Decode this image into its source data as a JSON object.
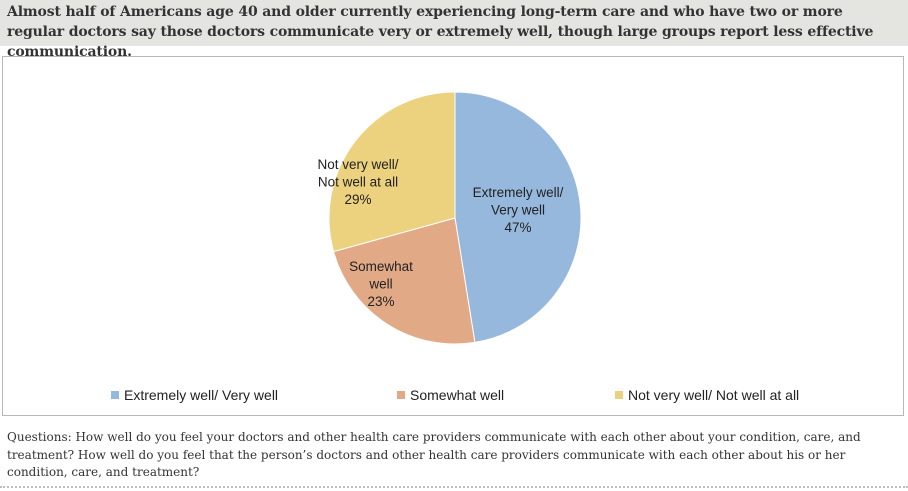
{
  "header": {
    "title": "Almost half of Americans age 40 and older currently experiencing long-term care and who have two or more regular doctors say those doctors communicate very or extremely well, though large groups report less effective communication."
  },
  "chart_data": {
    "type": "pie",
    "title": "",
    "legend_position": "bottom",
    "slices": [
      {
        "label_lines": [
          "Extremely well/",
          "Very well"
        ],
        "legend": "Extremely well/ Very well",
        "value": 47,
        "value_label": "47%",
        "color": "#95b8dc"
      },
      {
        "label_lines": [
          "Somewhat",
          "well"
        ],
        "legend": "Somewhat well",
        "value": 23,
        "value_label": "23%",
        "color": "#e2a987"
      },
      {
        "label_lines": [
          "Not very well/",
          "Not well at all"
        ],
        "legend": "Not very well/ Not well at all",
        "value": 29,
        "value_label": "29%",
        "color": "#ecd17e"
      }
    ]
  },
  "footer": {
    "question": "Questions: How well do you feel your doctors and other health care providers communicate with each other about your condition, care, and treatment? How well do you feel that the person’s doctors and other health care providers communicate with each other about his or her condition, care, and treatment?"
  }
}
